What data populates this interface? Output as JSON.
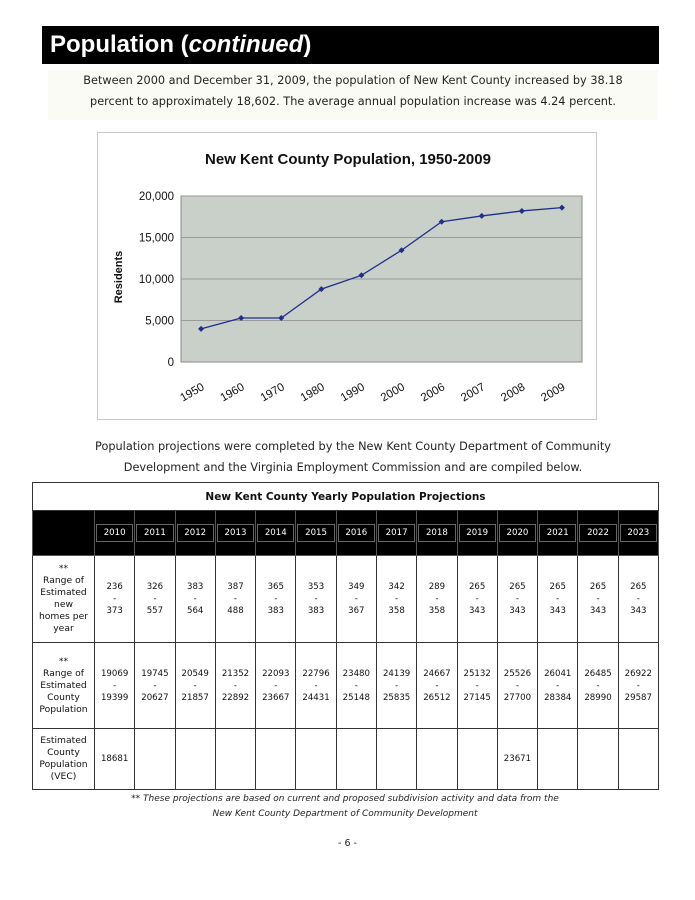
{
  "header": {
    "title_main": "Population (",
    "title_italic": "continued",
    "title_end": ")"
  },
  "intro": {
    "line1": "Between 2000 and December 31, 2009, the population of New Kent County increased by 38.18",
    "line2": "percent to approximately 18,602.  The average annual population increase was 4.24 percent."
  },
  "chart_data": {
    "type": "line",
    "title": "New Kent County Population, 1950-2009",
    "xlabel": "",
    "ylabel": "Residents",
    "categories": [
      "1950",
      "1960",
      "1970",
      "1980",
      "1990",
      "2000",
      "2006",
      "2007",
      "2008",
      "2009"
    ],
    "series": [
      {
        "values": [
          3995,
          5300,
          5300,
          8781,
          10445,
          13462,
          16900,
          17600,
          18200,
          18602
        ]
      }
    ],
    "y_ticks": [
      "0",
      "5,000",
      "10,000",
      "15,000",
      "20,000"
    ],
    "ylim": [
      0,
      20000
    ],
    "grid": true,
    "legend": "none",
    "colors": {
      "line": "#1f2f8a",
      "plot_bg": "#c9cfc9"
    }
  },
  "projections_text": {
    "line1": "Population projections were completed by the New Kent County Department of Community",
    "line2": "Development and the Virginia Employment Commission and are compiled below."
  },
  "table": {
    "caption": "New Kent County Yearly Population Projections",
    "years": [
      "2010",
      "2011",
      "2012",
      "2013",
      "2014",
      "2015",
      "2016",
      "2017",
      "2018",
      "2019",
      "2020",
      "2021",
      "2022",
      "2023"
    ],
    "rows": [
      {
        "label_lines": [
          "**",
          "Range of",
          "Estimated",
          "new",
          "homes per",
          "year"
        ],
        "low": [
          "236",
          "326",
          "383",
          "387",
          "365",
          "353",
          "349",
          "342",
          "289",
          "265",
          "265",
          "265",
          "265",
          "265"
        ],
        "dash": "-",
        "high": [
          "373",
          "557",
          "564",
          "488",
          "383",
          "383",
          "367",
          "358",
          "358",
          "343",
          "343",
          "343",
          "343",
          "343"
        ]
      },
      {
        "label_lines": [
          "**",
          "Range of",
          "Estimated",
          "County",
          "Population"
        ],
        "low": [
          "19069",
          "19745",
          "20549",
          "21352",
          "22093",
          "22796",
          "23480",
          "24139",
          "24667",
          "25132",
          "25526",
          "26041",
          "26485",
          "26922"
        ],
        "dash": "-",
        "high": [
          "19399",
          "20627",
          "21857",
          "22892",
          "23667",
          "24431",
          "25148",
          "25835",
          "26512",
          "27145",
          "27700",
          "28384",
          "28990",
          "29587"
        ]
      }
    ],
    "vec_row": {
      "label_lines": [
        "Estimated",
        "County",
        "Population",
        "(VEC)"
      ],
      "values": [
        "18681",
        "",
        "",
        "",
        "",
        "",
        "",
        "",
        "",
        "",
        "23671",
        "",
        "",
        ""
      ]
    }
  },
  "footnote": {
    "line1": "**  These projections are based on current and proposed subdivision activity and data from the",
    "line2": "New Kent County Department of Community Development"
  },
  "page_number": "- 6 -"
}
